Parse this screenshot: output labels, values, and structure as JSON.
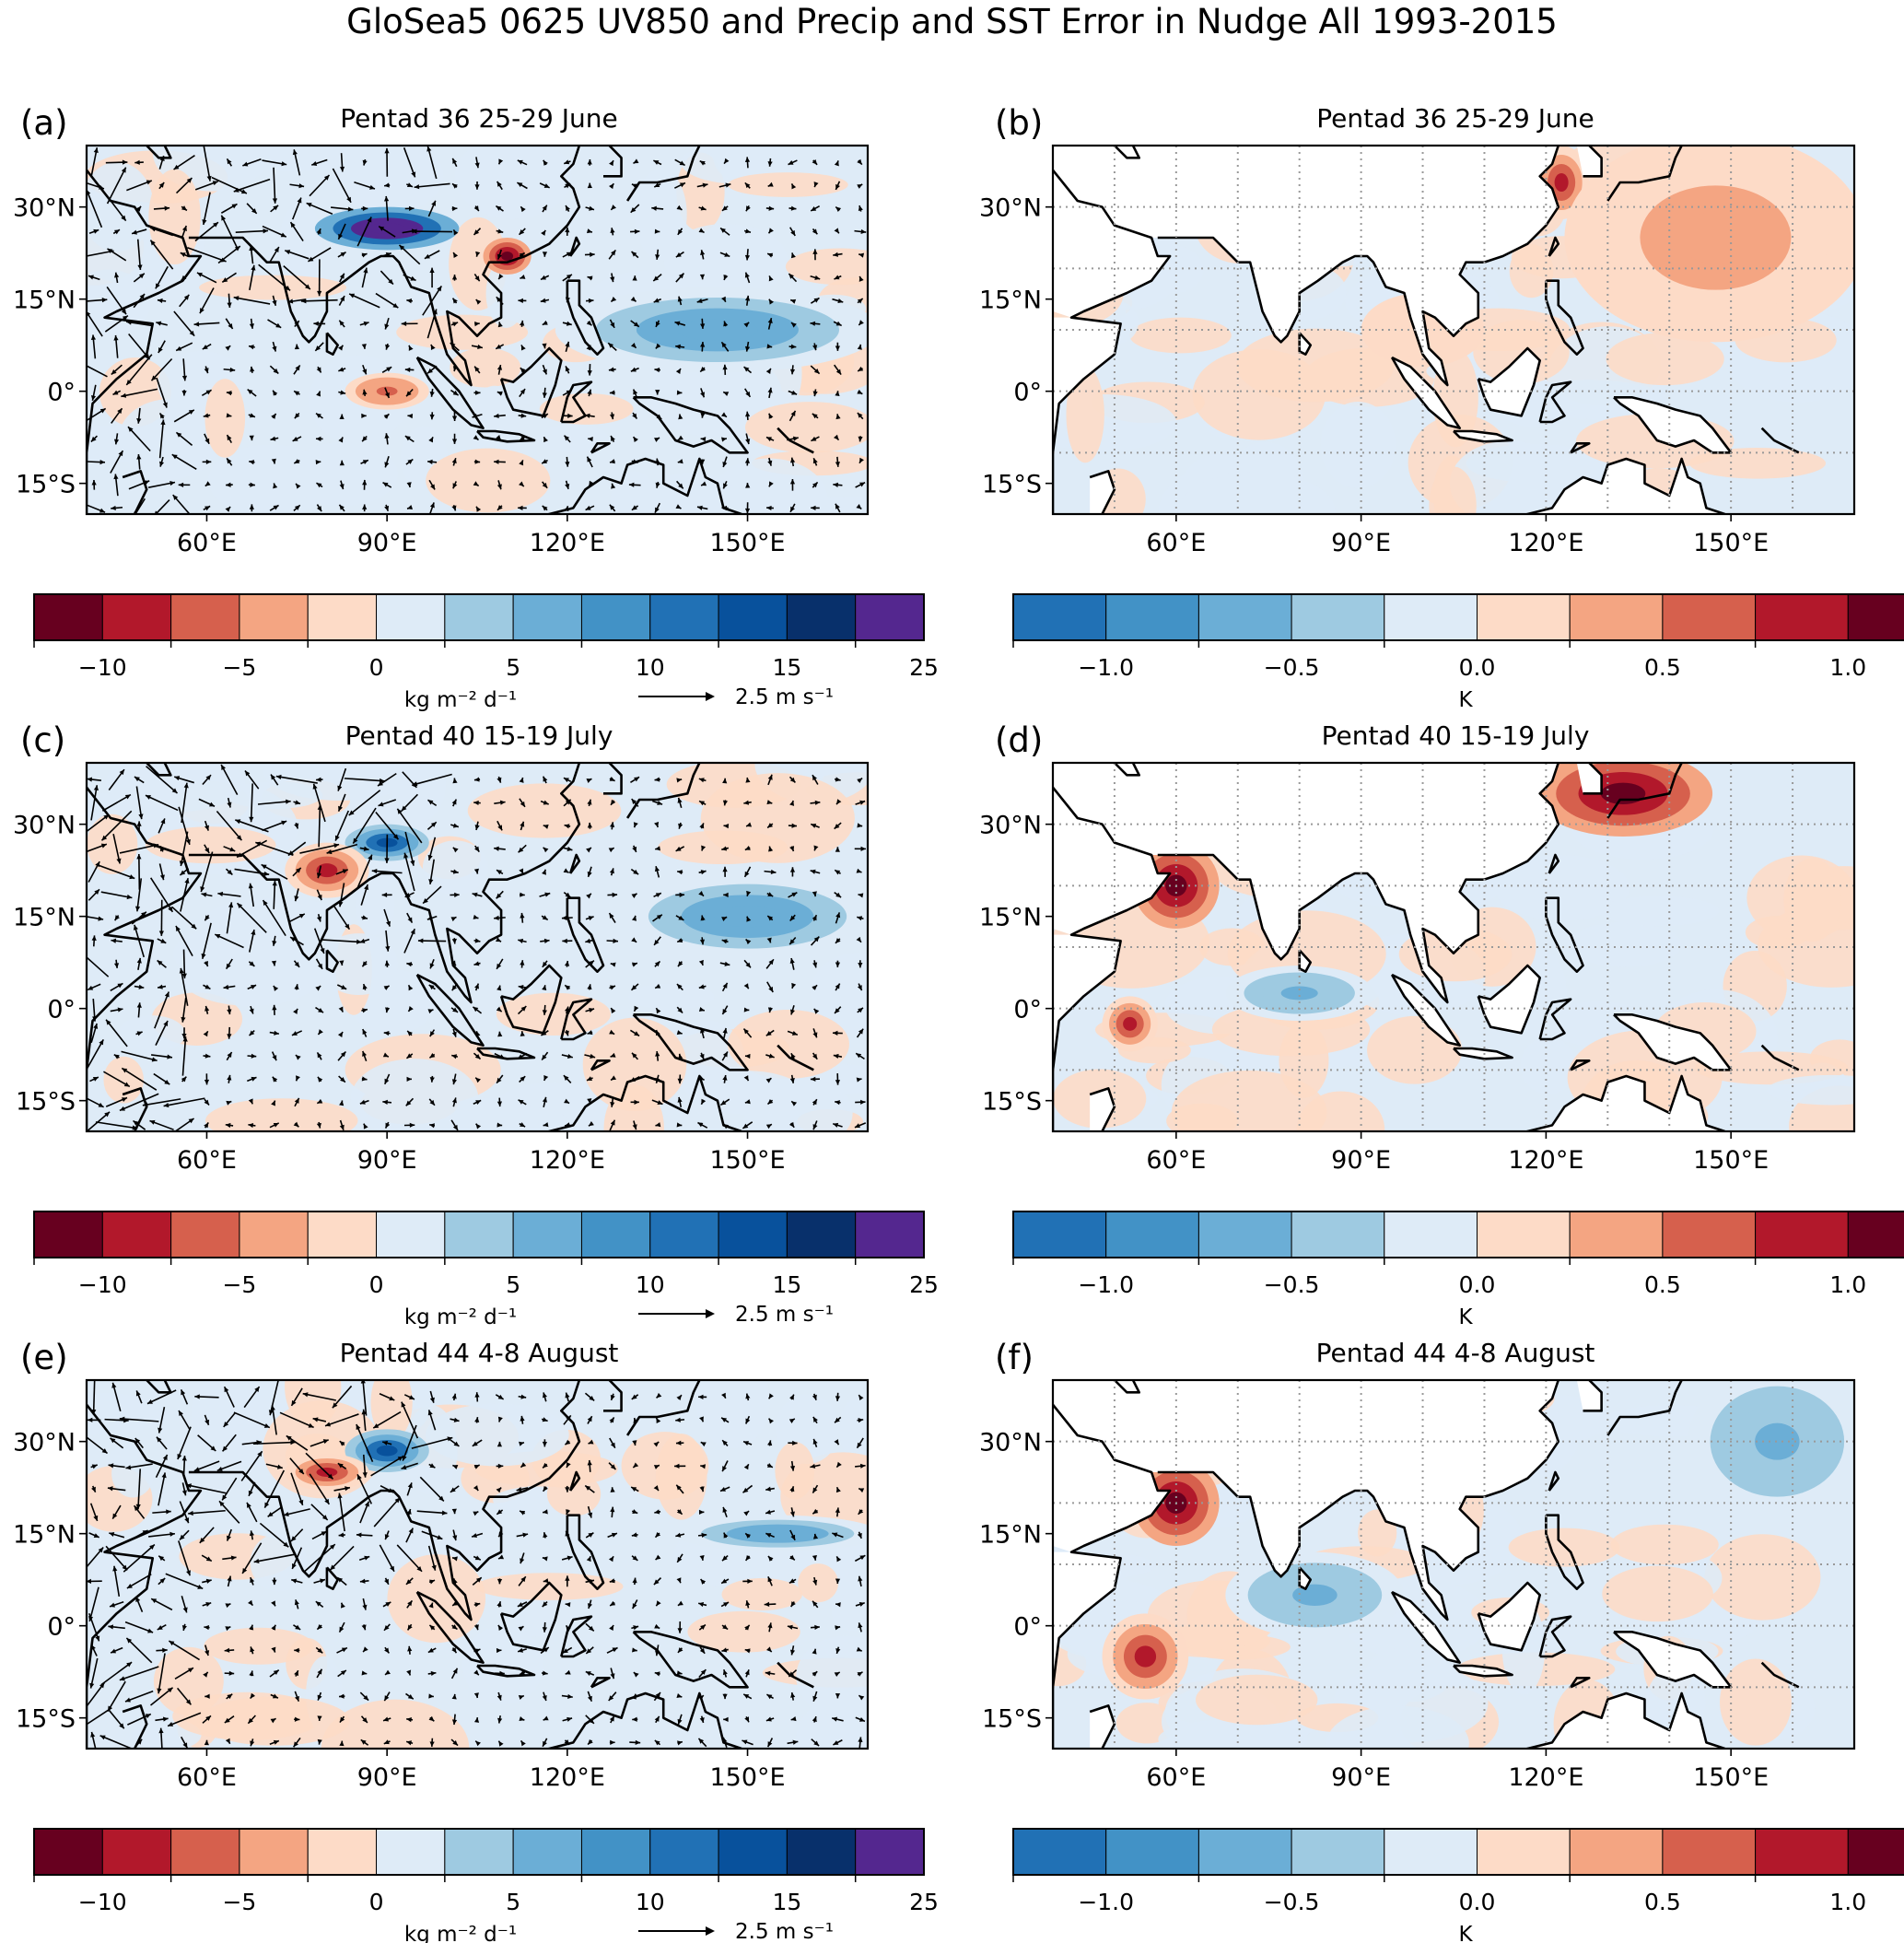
{
  "figure": {
    "title": "GloSea5 0625 UV850 and Precip and SST Error in Nudge All 1993-2015"
  },
  "chart_data": [
    {
      "panel": "(a)",
      "type": "heatmap",
      "subtype": "filled-contour map with wind vectors",
      "title": "Pentad 36 25-29 June",
      "variable": "Precipitation error with 850 hPa wind error vectors",
      "xlabel": "",
      "ylabel": "",
      "xlim": [
        40,
        170
      ],
      "ylim": [
        -20,
        40
      ],
      "xticks": [
        60,
        90,
        120,
        150
      ],
      "xtick_labels": [
        "60°E",
        "90°E",
        "120°E",
        "150°E"
      ],
      "yticks": [
        30,
        15,
        0,
        -15
      ],
      "ytick_labels": [
        "30°N",
        "15°N",
        "0°",
        "15°S"
      ],
      "grid": false,
      "features": [
        "coastlines",
        "quiver arrows"
      ],
      "colorbar_ref": "precip",
      "highlights": [
        {
          "region": "Himalayan foothills / Bay of Bengal head (~25-28°N, 80-100°E)",
          "sign": "positive",
          "max_level": 25
        },
        {
          "region": "Equatorial east Indian Ocean (~0°, 85-95°E)",
          "sign": "negative",
          "max_level": -5
        },
        {
          "region": "South China coast (~22°N, 110°E)",
          "sign": "negative",
          "max_level": -10
        },
        {
          "region": "Western Pacific (~5-15°N, 120-170°E)",
          "sign": "positive",
          "max_level": 7.5
        }
      ]
    },
    {
      "panel": "(b)",
      "type": "heatmap",
      "subtype": "filled-contour map",
      "title": "Pentad 36 25-29 June",
      "variable": "SST error",
      "xlim": [
        40,
        170
      ],
      "ylim": [
        -20,
        40
      ],
      "xticks": [
        60,
        90,
        120,
        150
      ],
      "xtick_labels": [
        "60°E",
        "90°E",
        "120°E",
        "150°E"
      ],
      "yticks": [
        30,
        15,
        0,
        -15
      ],
      "ytick_labels": [
        "30°N",
        "15°N",
        "0°",
        "15°S"
      ],
      "grid": true,
      "grid_style": "dotted",
      "features": [
        "coastlines",
        "land masked white"
      ],
      "colorbar_ref": "sst",
      "highlights": [
        {
          "region": "East China Sea / Yellow Sea (~30-38°N, 120-125°E)",
          "sign": "positive",
          "max_level": 1.0
        },
        {
          "region": "Western North Pacific (~10-40°N, 125-170°E)",
          "sign": "positive",
          "max_level": 0.5
        },
        {
          "region": "Indian Ocean",
          "sign": "mixed",
          "max_level": 0.25
        }
      ]
    },
    {
      "panel": "(c)",
      "type": "heatmap",
      "subtype": "filled-contour map with wind vectors",
      "title": "Pentad 40 15-19 July",
      "variable": "Precipitation error with 850 hPa wind error vectors",
      "xlim": [
        40,
        170
      ],
      "ylim": [
        -20,
        40
      ],
      "xticks": [
        60,
        90,
        120,
        150
      ],
      "xtick_labels": [
        "60°E",
        "90°E",
        "120°E",
        "150°E"
      ],
      "yticks": [
        30,
        15,
        0,
        -15
      ],
      "ytick_labels": [
        "30°N",
        "15°N",
        "0°",
        "15°S"
      ],
      "grid": false,
      "features": [
        "coastlines",
        "quiver arrows"
      ],
      "colorbar_ref": "precip",
      "highlights": [
        {
          "region": "Himalayan foothills (~27°N, 85-95°E)",
          "sign": "positive",
          "max_level": 15
        },
        {
          "region": "Central India (~20-25°N, 75-85°E)",
          "sign": "negative",
          "max_level": -7.5
        },
        {
          "region": "Western Pacific (~10-20°N, 130-170°E)",
          "sign": "positive",
          "max_level": 7.5
        }
      ]
    },
    {
      "panel": "(d)",
      "type": "heatmap",
      "subtype": "filled-contour map",
      "title": "Pentad 40 15-19 July",
      "variable": "SST error",
      "xlim": [
        40,
        170
      ],
      "ylim": [
        -20,
        40
      ],
      "xticks": [
        60,
        90,
        120,
        150
      ],
      "xtick_labels": [
        "60°E",
        "90°E",
        "120°E",
        "150°E"
      ],
      "yticks": [
        30,
        15,
        0,
        -15
      ],
      "ytick_labels": [
        "30°N",
        "15°N",
        "0°",
        "15°S"
      ],
      "grid": true,
      "grid_style": "dotted",
      "features": [
        "coastlines",
        "land masked white"
      ],
      "colorbar_ref": "sst",
      "highlights": [
        {
          "region": "Arabian Sea (~15-25°N, 55-65°E)",
          "sign": "positive",
          "max_level": 1.25
        },
        {
          "region": "Western equatorial Indian Ocean (~0-5°S, 50-55°E)",
          "sign": "positive",
          "max_level": 1.0
        },
        {
          "region": "East China Sea / Japan (~30-40°N, 120-145°E)",
          "sign": "positive",
          "max_level": 1.25
        },
        {
          "region": "Central Indian Ocean (~0-5°N, 70-90°E)",
          "sign": "negative",
          "max_level": -0.5
        }
      ]
    },
    {
      "panel": "(e)",
      "type": "heatmap",
      "subtype": "filled-contour map with wind vectors",
      "title": "Pentad 44 4-8 August",
      "variable": "Precipitation error with 850 hPa wind error vectors",
      "xlim": [
        40,
        170
      ],
      "ylim": [
        -20,
        40
      ],
      "xticks": [
        60,
        90,
        120,
        150
      ],
      "xtick_labels": [
        "60°E",
        "90°E",
        "120°E",
        "150°E"
      ],
      "yticks": [
        30,
        15,
        0,
        -15
      ],
      "ytick_labels": [
        "30°N",
        "15°N",
        "0°",
        "15°S"
      ],
      "grid": false,
      "features": [
        "coastlines",
        "quiver arrows"
      ],
      "colorbar_ref": "precip",
      "highlights": [
        {
          "region": "Himalayan foothills (~27-30°N, 85-95°E)",
          "sign": "positive",
          "max_level": 15
        },
        {
          "region": "North India (~25°N, 75-85°E)",
          "sign": "negative",
          "max_level": -7.5
        },
        {
          "region": "Western Pacific (~15°N, 140-170°E)",
          "sign": "positive",
          "max_level": 7.5
        }
      ]
    },
    {
      "panel": "(f)",
      "type": "heatmap",
      "subtype": "filled-contour map",
      "title": "Pentad 44 4-8 August",
      "variable": "SST error",
      "xlim": [
        40,
        170
      ],
      "ylim": [
        -20,
        40
      ],
      "xticks": [
        60,
        90,
        120,
        150
      ],
      "xtick_labels": [
        "60°E",
        "90°E",
        "120°E",
        "150°E"
      ],
      "yticks": [
        30,
        15,
        0,
        -15
      ],
      "ytick_labels": [
        "30°N",
        "15°N",
        "0°",
        "15°S"
      ],
      "grid": true,
      "grid_style": "dotted",
      "features": [
        "coastlines",
        "land masked white"
      ],
      "colorbar_ref": "sst",
      "highlights": [
        {
          "region": "Arabian Sea (~15-25°N, 55-65°E)",
          "sign": "positive",
          "max_level": 1.25
        },
        {
          "region": "Western Indian Ocean (~0-10°S, 50-60°E)",
          "sign": "positive",
          "max_level": 1.0
        },
        {
          "region": "Central Indian Ocean (~0-10°N, 70-95°E)",
          "sign": "negative",
          "max_level": -0.5
        },
        {
          "region": "Western North Pacific (~20-40°N, 145-170°E)",
          "sign": "negative",
          "max_level": -0.5
        }
      ]
    }
  ],
  "colorbars": {
    "precip": {
      "units": "kg m⁻² d⁻¹",
      "tick_labels": [
        "−10",
        "−5",
        "0",
        "5",
        "10",
        "15",
        "25"
      ],
      "bins": [
        {
          "color": "#67001f"
        },
        {
          "color": "#b2182b"
        },
        {
          "color": "#d6604d"
        },
        {
          "color": "#f4a582"
        },
        {
          "color": "#fddbc7"
        },
        {
          "color": "#deebf7"
        },
        {
          "color": "#9ecae1"
        },
        {
          "color": "#6baed6"
        },
        {
          "color": "#4292c6"
        },
        {
          "color": "#2171b5"
        },
        {
          "color": "#08519c"
        },
        {
          "color": "#08306b"
        },
        {
          "color": "#54278f"
        }
      ],
      "quiver_key": {
        "label": "2.5 m s⁻¹",
        "value": 2.5
      }
    },
    "sst": {
      "units": "K",
      "tick_labels": [
        "−1.0",
        "−0.5",
        "0.0",
        "0.5",
        "1.0"
      ],
      "bins": [
        {
          "color": "#2171b5"
        },
        {
          "color": "#4292c6"
        },
        {
          "color": "#6baed6"
        },
        {
          "color": "#9ecae1"
        },
        {
          "color": "#deebf7"
        },
        {
          "color": "#fddbc7"
        },
        {
          "color": "#f4a582"
        },
        {
          "color": "#d6604d"
        },
        {
          "color": "#b2182b"
        },
        {
          "color": "#67001f"
        }
      ]
    }
  }
}
